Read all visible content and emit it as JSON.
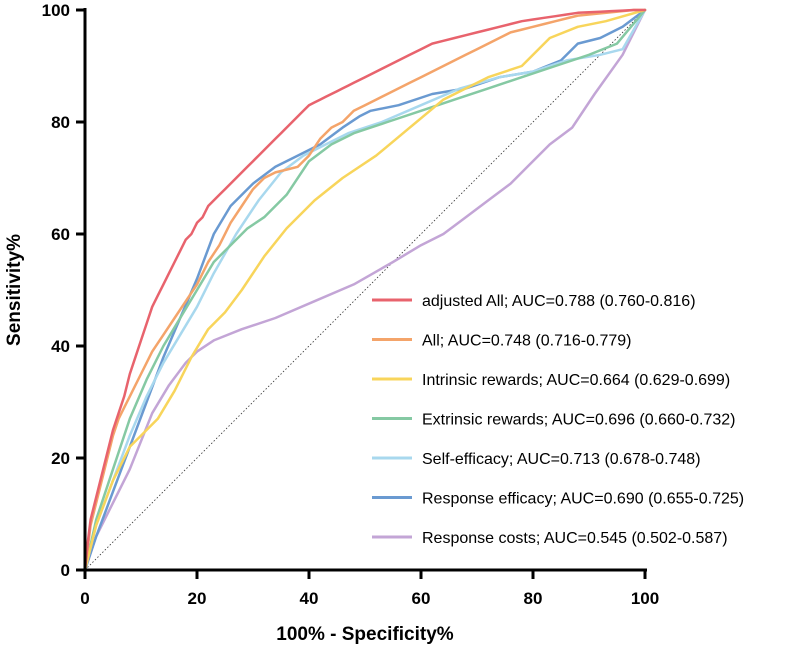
{
  "chart_data": {
    "type": "line",
    "title": "",
    "xlabel": "100% - Specificity%",
    "ylabel": "Sensitivity%",
    "xlim": [
      0,
      100
    ],
    "ylim": [
      0,
      100
    ],
    "x_ticks": [
      0,
      20,
      40,
      60,
      80,
      100
    ],
    "y_ticks": [
      0,
      20,
      40,
      60,
      80,
      100
    ],
    "reference_line": {
      "name": "chance",
      "x": [
        0,
        100
      ],
      "y": [
        0,
        100
      ],
      "style": "dotted"
    },
    "legend_position": "bottom-right",
    "series": [
      {
        "name": "adjusted All; AUC=0.788 (0.760-0.816)",
        "color": "#e8636d",
        "x": [
          0,
          0.5,
          1,
          2,
          3,
          4,
          5,
          6,
          7,
          8,
          9,
          10,
          11,
          12,
          13,
          14,
          15,
          16,
          17,
          18,
          19,
          20,
          21,
          22,
          23,
          24,
          25,
          26,
          27,
          28,
          29,
          30,
          31,
          32,
          33,
          34,
          35,
          36,
          37,
          38,
          39,
          40,
          41,
          42,
          43,
          44,
          45,
          46,
          47,
          48,
          49,
          50,
          52,
          54,
          56,
          58,
          60,
          62,
          64,
          66,
          68,
          70,
          72,
          74,
          76,
          78,
          80,
          82,
          84,
          86,
          88,
          90,
          92,
          94,
          96,
          98,
          100
        ],
        "y": [
          0,
          5,
          9,
          13,
          17,
          21,
          25,
          28,
          31,
          35,
          38,
          41,
          44,
          47,
          49,
          51,
          53,
          55,
          57,
          59,
          60,
          62,
          63,
          65,
          66,
          67,
          68,
          69,
          70,
          71,
          72,
          73,
          74,
          75,
          76,
          77,
          78,
          79,
          80,
          81,
          82,
          83,
          83.5,
          84,
          84.5,
          85,
          85.5,
          86,
          86.5,
          87,
          87.5,
          88,
          89,
          90,
          91,
          92,
          93,
          94,
          94.5,
          95,
          95.5,
          96,
          96.5,
          97,
          97.5,
          98,
          98.3,
          98.6,
          98.9,
          99.2,
          99.5,
          99.6,
          99.7,
          99.8,
          99.9,
          100,
          100
        ]
      },
      {
        "name": "All; AUC=0.748 (0.716-0.779)",
        "color": "#f4a46a",
        "x": [
          0,
          1,
          2,
          3,
          4,
          5,
          6,
          7,
          8,
          9,
          10,
          11,
          12,
          14,
          16,
          18,
          20,
          22,
          24,
          26,
          28,
          30,
          32,
          34,
          36,
          38,
          40,
          42,
          44,
          46,
          48,
          50,
          52,
          54,
          56,
          58,
          60,
          62,
          64,
          66,
          68,
          70,
          72,
          74,
          76,
          78,
          80,
          82,
          84,
          86,
          88,
          90,
          92,
          94,
          96,
          98,
          100
        ],
        "y": [
          0,
          8,
          12,
          16,
          20,
          24,
          27,
          29,
          31,
          33,
          35,
          37,
          39,
          42,
          45,
          48,
          51,
          55,
          58,
          62,
          65,
          68,
          70,
          71,
          71.5,
          72,
          74,
          77,
          79,
          80,
          82,
          83,
          84,
          85,
          86,
          87,
          88,
          89,
          90,
          91,
          92,
          93,
          94,
          95,
          96,
          96.5,
          97,
          97.5,
          98,
          98.5,
          99,
          99.2,
          99.4,
          99.6,
          99.8,
          100,
          100
        ]
      },
      {
        "name": "Intrinsic rewards; AUC=0.664 (0.629-0.699)",
        "color": "#f8d55b",
        "x": [
          0,
          2,
          5,
          8,
          10,
          13,
          16,
          19,
          22,
          25,
          28,
          32,
          36,
          41,
          46,
          52,
          58,
          64,
          72,
          78,
          83,
          88,
          93,
          100
        ],
        "y": [
          0,
          8,
          16,
          22,
          24,
          27,
          32,
          38,
          43,
          46,
          50,
          56,
          61,
          66,
          70,
          74,
          79,
          84,
          88,
          90,
          95,
          97,
          98,
          100
        ]
      },
      {
        "name": "Extrinsic rewards; AUC=0.696 (0.660-0.732)",
        "color": "#85c9a3",
        "x": [
          0,
          2,
          5,
          8,
          11,
          14,
          17,
          20,
          23,
          26,
          29,
          32,
          36,
          40,
          44,
          48,
          54,
          60,
          66,
          72,
          78,
          84,
          90,
          95,
          100
        ],
        "y": [
          0,
          9,
          18,
          27,
          34,
          40,
          45,
          50,
          55,
          58,
          61,
          63,
          67,
          73,
          76,
          78,
          80,
          82,
          84,
          86,
          88,
          90,
          92,
          94,
          100
        ]
      },
      {
        "name": "Self-efficacy; AUC=0.713 (0.678-0.748)",
        "color": "#a8d8ee",
        "x": [
          0,
          2,
          5,
          8,
          11,
          14,
          17,
          20,
          23,
          27,
          31,
          35,
          39,
          43,
          47,
          53,
          60,
          67,
          74,
          80,
          86,
          92,
          96,
          100
        ],
        "y": [
          0,
          8,
          16,
          24,
          31,
          37,
          42,
          47,
          53,
          60,
          66,
          71,
          74,
          76,
          78,
          80,
          83,
          86,
          88,
          89,
          91,
          92,
          93,
          100
        ]
      },
      {
        "name": "Response efficacy; AUC=0.690 (0.655-0.725)",
        "color": "#6a9ad1",
        "x": [
          0,
          2,
          5,
          8,
          11,
          14,
          17,
          20,
          23,
          26,
          30,
          34,
          38,
          42,
          46,
          49,
          51,
          56,
          62,
          68,
          74,
          80,
          85,
          88,
          92,
          96,
          100
        ],
        "y": [
          0,
          6,
          14,
          22,
          30,
          38,
          45,
          52,
          60,
          65,
          69,
          72,
          74,
          76,
          79,
          81,
          82,
          83,
          85,
          86,
          88,
          89,
          91,
          94,
          95,
          97,
          100
        ]
      },
      {
        "name": "Response costs; AUC=0.545 (0.502-0.587)",
        "color": "#c3a5d6",
        "x": [
          0,
          2,
          5,
          8,
          10,
          12,
          15,
          18,
          20,
          23,
          28,
          34,
          41,
          48,
          55,
          60,
          64,
          68,
          72,
          76,
          79,
          83,
          87,
          91,
          96,
          100
        ],
        "y": [
          0,
          6,
          12,
          18,
          23,
          28,
          33,
          37,
          39,
          41,
          43,
          45,
          48,
          51,
          55,
          58,
          60,
          63,
          66,
          69,
          72,
          76,
          79,
          85,
          92,
          100
        ]
      }
    ]
  }
}
